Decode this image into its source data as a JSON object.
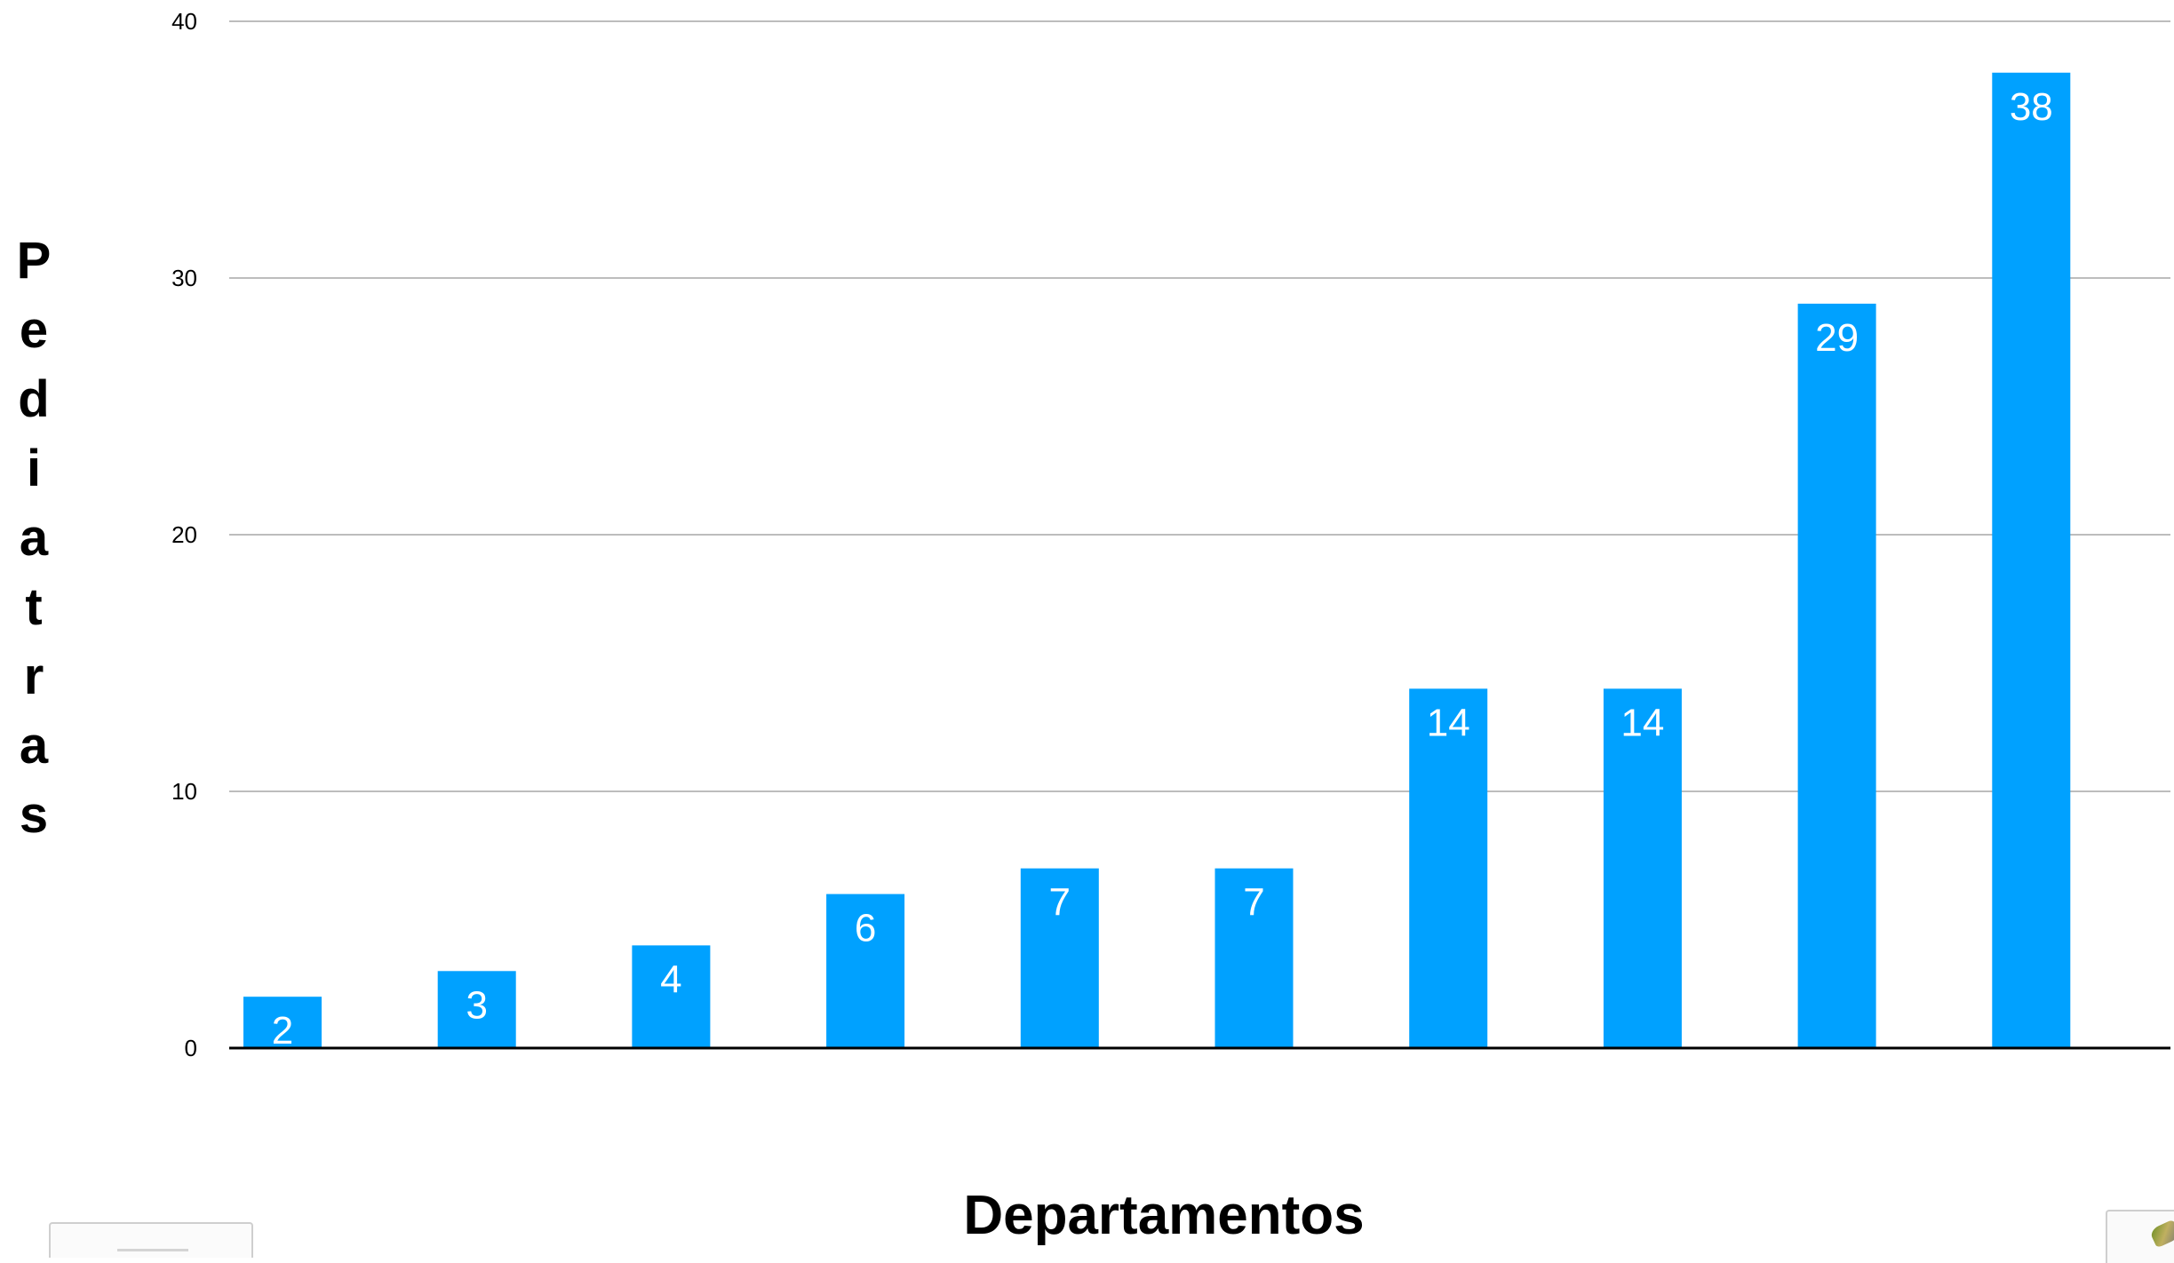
{
  "chart_data": {
    "type": "bar",
    "categories": [
      "",
      "",
      "",
      "",
      "",
      "",
      "",
      "",
      "",
      ""
    ],
    "values": [
      2,
      3,
      4,
      6,
      7,
      7,
      14,
      14,
      29,
      38
    ],
    "data_labels": [
      "2",
      "3",
      "4",
      "6",
      "7",
      "7",
      "14",
      "14",
      "29",
      "38"
    ],
    "title": "",
    "xlabel": "Departamentos",
    "ylabel": "Pediatras",
    "ylim": [
      0,
      40
    ],
    "yticks": [
      "0",
      "10",
      "20",
      "30",
      "40"
    ],
    "grid": true,
    "legend": "none",
    "bar_color": "#00A1FF",
    "label_color": "#FFFFFF",
    "grid_color": "#BDBDBD",
    "axis_color": "#000000"
  }
}
